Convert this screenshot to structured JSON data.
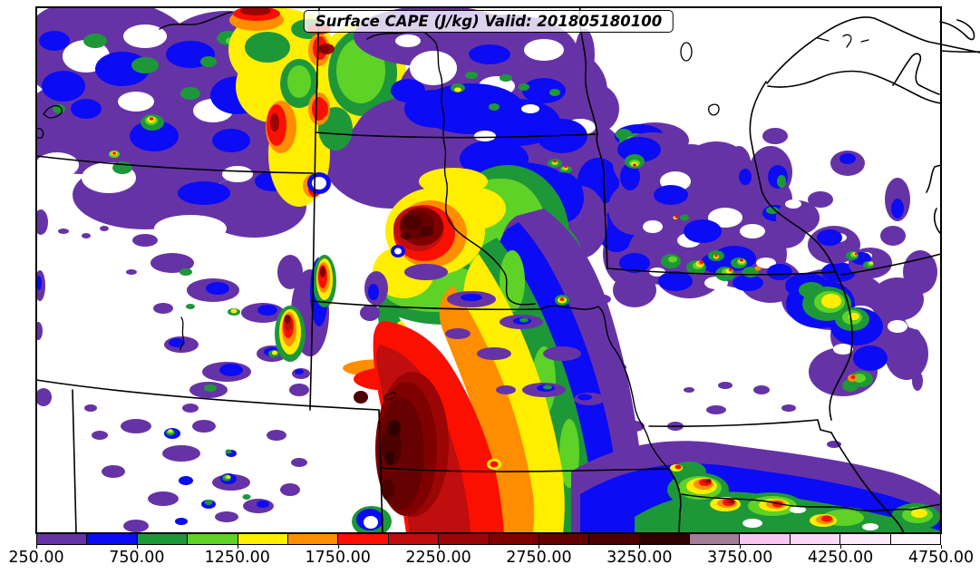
{
  "title": "Surface CAPE (J/kg) Valid: 201805180100",
  "colorbar": {
    "unit": "J/kg",
    "tick_labels": [
      "250.00",
      "750.00",
      "1250.00",
      "1750.00",
      "2250.00",
      "2750.00",
      "3250.00",
      "3750.00",
      "4250.00",
      "4750.00"
    ],
    "levels": [
      250,
      500,
      750,
      1000,
      1250,
      1500,
      1750,
      2000,
      2250,
      2500,
      2750,
      3000,
      3250,
      3500,
      3750,
      4000,
      4250,
      4500,
      4750
    ],
    "colors": [
      "#6633a7",
      "#0b0bf5",
      "#1e9739",
      "#5ed226",
      "#ffee00",
      "#ff8d00",
      "#fb0f00",
      "#c00d0d",
      "#9b0505",
      "#800000",
      "#670000",
      "#4d0000",
      "#300000",
      "#a37d98",
      "#f8c6f0",
      "#fbd8f7",
      "#fdeafb",
      "#fff6fe"
    ],
    "edge_color": "#000000"
  },
  "chart_data": {
    "type": "heatmap",
    "subtype": "filled-contour-map",
    "title": "Surface CAPE (J/kg) Valid: 201805180100",
    "variable": "Surface CAPE",
    "units": "J/kg",
    "valid_time": "201805180100",
    "contour_levels": [
      250,
      500,
      750,
      1000,
      1250,
      1500,
      1750,
      2000,
      2250,
      2500,
      2750,
      3000,
      3250,
      3500,
      3750,
      4000,
      4250,
      4500,
      4750
    ],
    "palette": [
      "#6633a7",
      "#0b0bf5",
      "#1e9739",
      "#5ed226",
      "#ffee00",
      "#ff8d00",
      "#fb0f00",
      "#c00d0d",
      "#9b0505",
      "#800000",
      "#670000",
      "#4d0000",
      "#300000",
      "#a37d98",
      "#f8c6f0",
      "#fbd8f7",
      "#fdeafb",
      "#fff6fe"
    ],
    "legend_position": "bottom",
    "grid": false,
    "features": [
      {
        "area": "northwest quadrant (Montana)",
        "approx_max_jkg": 1750,
        "pattern": "widespread scattered 250-1000 with embedded small 1250-1750 cores"
      },
      {
        "area": "west-central North Dakota / Montana border",
        "approx_max_jkg": 2250,
        "pattern": "large 1250-2250 banded maximum"
      },
      {
        "area": "central South Dakota",
        "approx_max_jkg": 3250,
        "pattern": "compact core 2750-3250 ringed by 1250-2250"
      },
      {
        "area": "central Nebraska into central Kansas",
        "approx_max_jkg": 3500,
        "pattern": "broad curved SW-NE band; widest darkest core 2750-3500 in Kansas at bottom center"
      },
      {
        "area": "southern Iowa / northern Missouri",
        "approx_max_jkg": 2250,
        "pattern": "cluster of small 1000-2250 cells in 250-750 field"
      },
      {
        "area": "eastern Iowa / Illinois border",
        "approx_max_jkg": 1500,
        "pattern": "blue-green maximum 750-1500"
      },
      {
        "area": "Missouri southern edge",
        "approx_max_jkg": 2750,
        "pattern": "west-east band 500-1250 with embedded 1750-2750 cores"
      },
      {
        "area": "northern Minnesota / northern Wisconsin / upper Michigan",
        "approx_max_jkg": 0,
        "pattern": "mostly CAPE-free (white)"
      }
    ]
  }
}
